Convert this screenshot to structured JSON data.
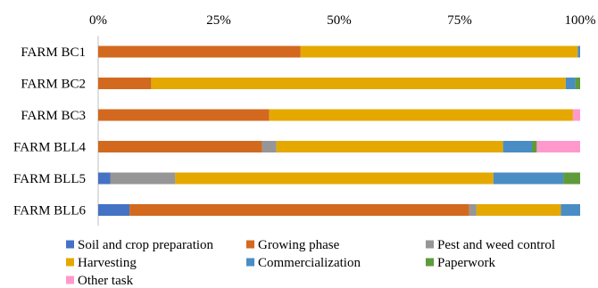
{
  "chart_data": {
    "type": "bar",
    "orientation": "horizontal",
    "stacked": true,
    "percent_stacked": true,
    "title": "",
    "xlabel": "",
    "ylabel": "",
    "xlim": [
      0,
      100
    ],
    "x_ticks": [
      "0%",
      "25%",
      "50%",
      "75%",
      "100%"
    ],
    "x_axis_position": "top",
    "grid": false,
    "legend_position": "bottom",
    "categories": [
      "FARM BC1",
      "FARM BC2",
      "FARM BC3",
      "FARM BLL4",
      "FARM BLL5",
      "FARM BLL6"
    ],
    "series": [
      {
        "name": "Soil and crop preparation",
        "color": "#4472C4",
        "values": [
          0,
          0,
          0,
          0,
          2.5,
          6.5
        ]
      },
      {
        "name": "Growing phase",
        "color": "#D2691E",
        "values": [
          42,
          11,
          35.5,
          34,
          0,
          70.5
        ]
      },
      {
        "name": "Pest and weed control",
        "color": "#969696",
        "values": [
          0,
          0,
          0,
          3,
          13.5,
          1.5
        ]
      },
      {
        "name": "Harvesting",
        "color": "#E5A800",
        "values": [
          57.5,
          86,
          63,
          47,
          66,
          17.5
        ]
      },
      {
        "name": "Commercialization",
        "color": "#4A8DC4",
        "values": [
          0.5,
          2,
          0,
          6,
          14.5,
          4
        ]
      },
      {
        "name": "Paperwork",
        "color": "#5E9B3A",
        "values": [
          0,
          1,
          0,
          1,
          3.5,
          0
        ]
      },
      {
        "name": "Other task",
        "color": "#FF99CC",
        "values": [
          0,
          0,
          1.5,
          9,
          0,
          0
        ]
      }
    ]
  }
}
